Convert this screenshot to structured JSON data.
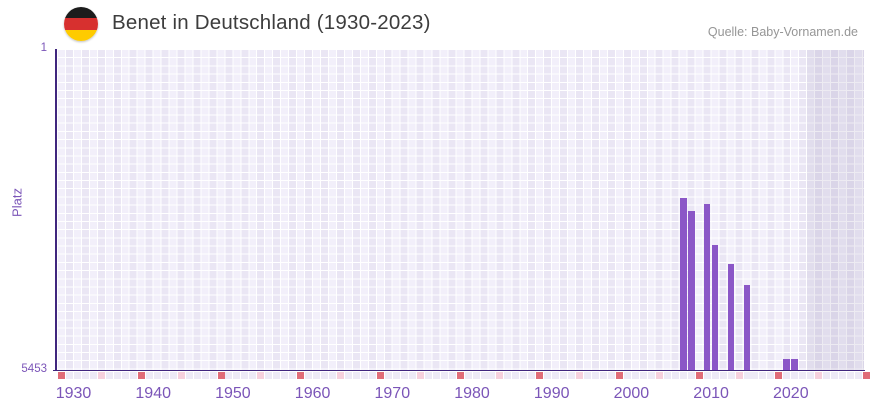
{
  "header": {
    "title": "Benet in Deutschland (1930-2023)",
    "source": "Quelle: Baby-Vornamen.de",
    "flag_colors": [
      "#1c1c1c",
      "#d7302f",
      "#fecb00"
    ]
  },
  "chart_data": {
    "type": "bar",
    "title": "Benet in Deutschland (1930-2023)",
    "xlabel": "",
    "ylabel": "Platz",
    "x_axis": {
      "min": 1930,
      "max": 2030,
      "tick_labels": [
        1930,
        1940,
        1950,
        1960,
        1970,
        1980,
        1990,
        2000,
        2010,
        2020
      ]
    },
    "y_axis": {
      "min": 1,
      "max": 5453,
      "inverted": true,
      "top_label": "1",
      "bottom_label": "5453"
    },
    "series": [
      {
        "name": "Platz",
        "points": [
          {
            "year": 2008,
            "rank": 2525
          },
          {
            "year": 2009,
            "rank": 2755
          },
          {
            "year": 2011,
            "rank": 2630
          },
          {
            "year": 2012,
            "rank": 3335
          },
          {
            "year": 2014,
            "rank": 3645
          },
          {
            "year": 2016,
            "rank": 4005
          },
          {
            "year": 2021,
            "rank": 5280
          },
          {
            "year": 2022,
            "rank": 5280
          }
        ]
      }
    ],
    "shaded_future_region": {
      "from": 2024,
      "to": 2030
    },
    "strip": {
      "decade_years": [
        1930,
        1940,
        1950,
        1960,
        1970,
        1980,
        1990,
        2000,
        2010,
        2020
      ],
      "half_decade_years": [
        1935,
        1945,
        1955,
        1965,
        1975,
        1985,
        1995,
        2005,
        2015,
        2025
      ],
      "end_cap": true,
      "decade_color": "#e06c77",
      "half_decade_color": "#f6d0dc",
      "base_color": "#edeaf6"
    },
    "colors": {
      "bar": "#8b57c7",
      "axis": "#40267e",
      "tick_label": "#7b55b8",
      "grid_light": "#f2effa",
      "grid_dark": "#eae6f4"
    },
    "legend": false,
    "grid": true
  }
}
